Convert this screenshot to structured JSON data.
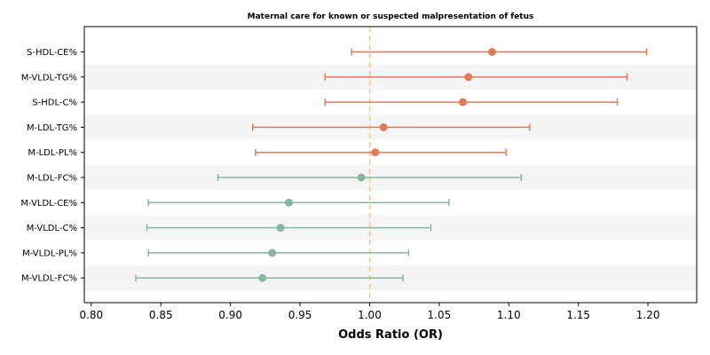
{
  "chart_data": {
    "type": "forest",
    "title": "Maternal care for known or suspected malpresentation of fetus",
    "xlabel": "Odds Ratio (OR)",
    "xlim": [
      0.795,
      1.235
    ],
    "xticks": [
      "0.80",
      "0.85",
      "0.90",
      "0.95",
      "1.00",
      "1.05",
      "1.10",
      "1.15",
      "1.20"
    ],
    "reference_line": 1.0,
    "colors": {
      "positive": "#e07b5a",
      "negative": "#86b8a0",
      "reference": "#f2c48d",
      "band": "#f5f5f5"
    },
    "rows": [
      {
        "label": "S-HDL-CE%",
        "or": 1.088,
        "lo": 0.987,
        "hi": 1.199
      },
      {
        "label": "M-VLDL-TG%",
        "or": 1.071,
        "lo": 0.968,
        "hi": 1.185
      },
      {
        "label": "S-HDL-C%",
        "or": 1.067,
        "lo": 0.968,
        "hi": 1.178
      },
      {
        "label": "M-LDL-TG%",
        "or": 1.01,
        "lo": 0.916,
        "hi": 1.115
      },
      {
        "label": "M-LDL-PL%",
        "or": 1.004,
        "lo": 0.918,
        "hi": 1.098
      },
      {
        "label": "M-LDL-FC%",
        "or": 0.994,
        "lo": 0.891,
        "hi": 1.109
      },
      {
        "label": "M-VLDL-CE%",
        "or": 0.942,
        "lo": 0.841,
        "hi": 1.057
      },
      {
        "label": "M-VLDL-C%",
        "or": 0.936,
        "lo": 0.84,
        "hi": 1.044
      },
      {
        "label": "M-VLDL-PL%",
        "or": 0.93,
        "lo": 0.841,
        "hi": 1.028
      },
      {
        "label": "M-VLDL-FC%",
        "or": 0.923,
        "lo": 0.832,
        "hi": 1.024
      }
    ]
  }
}
